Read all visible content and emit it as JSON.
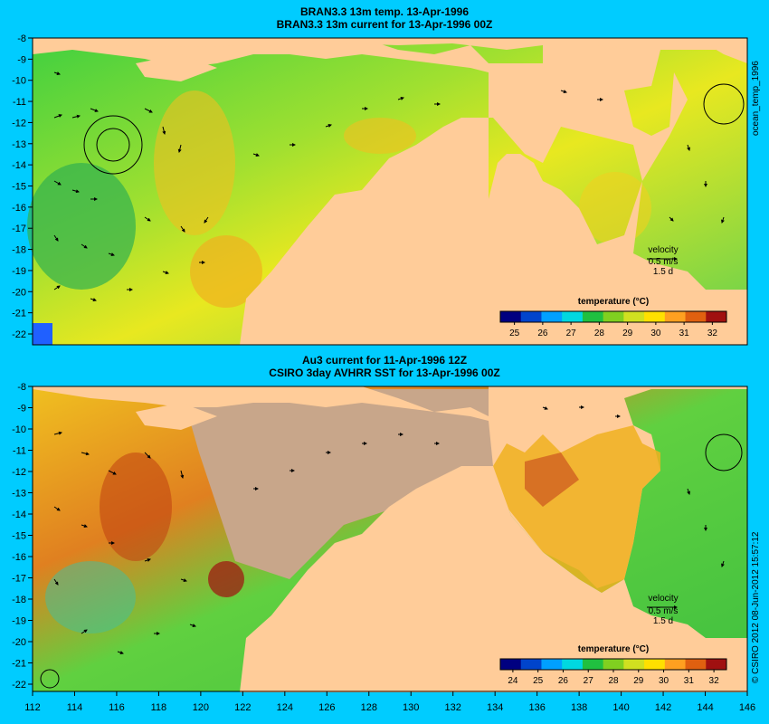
{
  "panels": [
    {
      "title_line1": "BRAN3.3 13m temp. 13-Apr-1996",
      "title_line2": "BRAN3.3 13m current for 13-Apr-1996 00Z",
      "colorbar_title": "temperature (°C)",
      "colorbar_ticks": [
        "25",
        "26",
        "27",
        "28",
        "29",
        "30",
        "31",
        "32"
      ],
      "velocity_label": "velocity",
      "velocity_scale": "0.5 m/s",
      "velocity_days": "1.5 d",
      "side_note": "ocean_temp_1996"
    },
    {
      "title_line1": "Au3 current for 11-Apr-1996 12Z",
      "title_line2": "CSIRO 3day AVHRR SST for 13-Apr-1996 00Z",
      "colorbar_title": "temperature (°C)",
      "colorbar_ticks": [
        "24",
        "25",
        "26",
        "27",
        "28",
        "29",
        "30",
        "31",
        "32"
      ],
      "velocity_label": "velocity",
      "velocity_scale": "0.5 m/s",
      "velocity_days": "1.5 d",
      "side_note": "© CSIRO 2012   08-Jun-2012 15:57:12"
    }
  ],
  "y_ticks": [
    "-8",
    "-9",
    "-10",
    "-11",
    "-12",
    "-13",
    "-14",
    "-15",
    "-16",
    "-17",
    "-18",
    "-19",
    "-20",
    "-21",
    "-22"
  ],
  "x_ticks": [
    "112",
    "114",
    "116",
    "118",
    "120",
    "122",
    "124",
    "126",
    "128",
    "130",
    "132",
    "134",
    "136",
    "138",
    "140",
    "142",
    "144",
    "146"
  ],
  "colors": {
    "background": "#00ccff",
    "land": "#ffcc99",
    "missing_data": "#c8a68a",
    "colormap": [
      "#000080",
      "#0044cc",
      "#00a0ff",
      "#00d8e0",
      "#20c040",
      "#80d020",
      "#d0e020",
      "#ffe000",
      "#ffa020",
      "#e06010",
      "#a01010"
    ]
  }
}
